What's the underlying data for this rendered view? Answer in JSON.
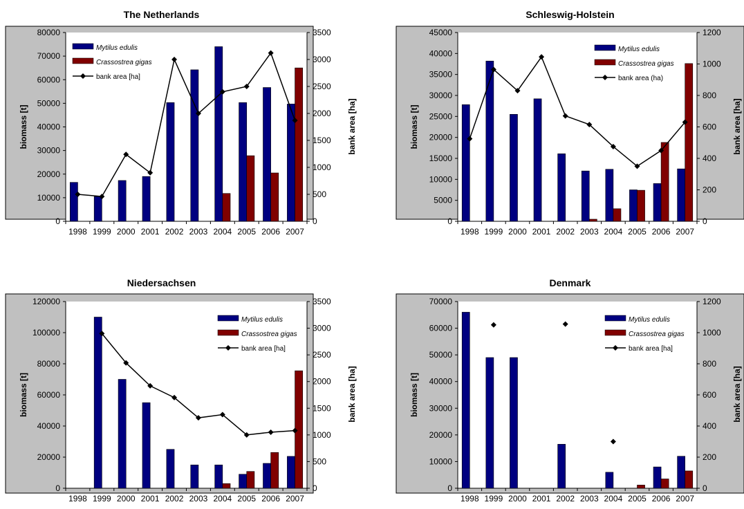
{
  "chart_data": [
    {
      "type": "bar",
      "title": "The Netherlands",
      "ylabel": "biomass [t]",
      "y2label": "bank area [ha]",
      "categories": [
        "1998",
        "1999",
        "2000",
        "2001",
        "2002",
        "2003",
        "2004",
        "2005",
        "2006",
        "2007"
      ],
      "ylim": [
        0,
        80000
      ],
      "y_ticks": [
        0,
        10000,
        20000,
        30000,
        40000,
        50000,
        60000,
        70000,
        80000
      ],
      "y2lim": [
        0,
        3500
      ],
      "y2_ticks": [
        0,
        500,
        1000,
        1500,
        2000,
        2500,
        3000,
        3500
      ],
      "legend_position": "top-left",
      "series": [
        {
          "name": "Mytilus edulis",
          "kind": "bar",
          "axis": "left",
          "color": "#000080",
          "values": [
            16500,
            10500,
            17300,
            19000,
            50300,
            64200,
            74000,
            50300,
            56700,
            49700
          ]
        },
        {
          "name": "Crassostrea gigas",
          "kind": "bar",
          "axis": "left",
          "color": "#800000",
          "values": [
            0,
            0,
            0,
            0,
            0,
            0,
            11800,
            27800,
            20500,
            65000
          ]
        },
        {
          "name": "bank area [ha]",
          "kind": "line",
          "axis": "right",
          "color": "#000000",
          "values": [
            500,
            460,
            1240,
            900,
            3000,
            2000,
            2400,
            2500,
            3120,
            1870
          ]
        }
      ]
    },
    {
      "type": "bar",
      "title": "Schleswig-Holstein",
      "ylabel": "biomass [t]",
      "y2label": "bank area [ha]",
      "categories": [
        "1998",
        "1999",
        "2000",
        "2001",
        "2002",
        "2003",
        "2004",
        "2005",
        "2006",
        "2007"
      ],
      "ylim": [
        0,
        45000
      ],
      "y_ticks": [
        0,
        5000,
        10000,
        15000,
        20000,
        25000,
        30000,
        35000,
        40000,
        45000
      ],
      "y2lim": [
        0,
        1200
      ],
      "y2_ticks": [
        0,
        200,
        400,
        600,
        800,
        1000,
        1200
      ],
      "legend_position": "top-right",
      "series": [
        {
          "name": "Mytilus edulis",
          "kind": "bar",
          "axis": "left",
          "color": "#000080",
          "values": [
            27800,
            38200,
            25500,
            29200,
            16100,
            12000,
            12400,
            7500,
            9000,
            12500
          ]
        },
        {
          "name": "Crassostrea gigas",
          "kind": "bar",
          "axis": "left",
          "color": "#800000",
          "values": [
            0,
            0,
            0,
            0,
            0,
            500,
            3000,
            7400,
            18800,
            37600
          ]
        },
        {
          "name": "bank area (ha)",
          "kind": "line",
          "axis": "right",
          "color": "#000000",
          "values": [
            525,
            965,
            830,
            1045,
            670,
            615,
            475,
            350,
            450,
            630
          ]
        }
      ]
    },
    {
      "type": "bar",
      "title": "Niedersachsen",
      "ylabel": "biomass [t]",
      "y2label": "bank area [ha]",
      "categories": [
        "1998",
        "1999",
        "2000",
        "2001",
        "2002",
        "2003",
        "2004",
        "2005",
        "2006",
        "2007"
      ],
      "ylim": [
        0,
        120000
      ],
      "y_ticks": [
        0,
        20000,
        40000,
        60000,
        80000,
        100000,
        120000
      ],
      "y2lim": [
        0,
        3500
      ],
      "y2_ticks": [
        0,
        500,
        1000,
        1500,
        2000,
        2500,
        3000,
        3500
      ],
      "legend_position": "top-right",
      "series": [
        {
          "name": "Mytilus edulis",
          "kind": "bar",
          "axis": "left",
          "color": "#000080",
          "values": [
            null,
            110000,
            70000,
            55000,
            25000,
            15000,
            15000,
            9000,
            16000,
            20500
          ]
        },
        {
          "name": "Crassostrea gigas",
          "kind": "bar",
          "axis": "left",
          "color": "#800000",
          "values": [
            0,
            0,
            0,
            0,
            0,
            0,
            3000,
            10800,
            23000,
            75500
          ]
        },
        {
          "name": "bank area [ha]",
          "kind": "line",
          "axis": "right",
          "color": "#000000",
          "values": [
            null,
            2900,
            2350,
            1920,
            1700,
            1320,
            1380,
            1000,
            1050,
            1080
          ]
        }
      ]
    },
    {
      "type": "bar",
      "title": "Denmark",
      "ylabel": "biomass [t]",
      "y2label": "bank area [ha]",
      "categories": [
        "1998",
        "1999",
        "2000",
        "2001",
        "2002",
        "2003",
        "2004",
        "2005",
        "2006",
        "2007"
      ],
      "ylim": [
        0,
        70000
      ],
      "y_ticks": [
        0,
        10000,
        20000,
        30000,
        40000,
        50000,
        60000,
        70000
      ],
      "y2lim": [
        0,
        1200
      ],
      "y2_ticks": [
        0,
        200,
        400,
        600,
        800,
        1000,
        1200
      ],
      "legend_position": "top-right",
      "series": [
        {
          "name": "Mytilus edulis",
          "kind": "bar",
          "axis": "left",
          "color": "#000080",
          "values": [
            66000,
            49000,
            49000,
            0,
            16500,
            0,
            6000,
            0,
            8000,
            12000
          ]
        },
        {
          "name": "Crassostrea gigas",
          "kind": "bar",
          "axis": "left",
          "color": "#800000",
          "values": [
            0,
            0,
            0,
            0,
            0,
            0,
            0,
            1200,
            3500,
            6500
          ]
        },
        {
          "name": "bank area [ha]",
          "kind": "points",
          "axis": "right",
          "color": "#000000",
          "values": [
            null,
            1050,
            null,
            null,
            1055,
            null,
            300,
            null,
            null,
            null
          ]
        }
      ]
    }
  ]
}
